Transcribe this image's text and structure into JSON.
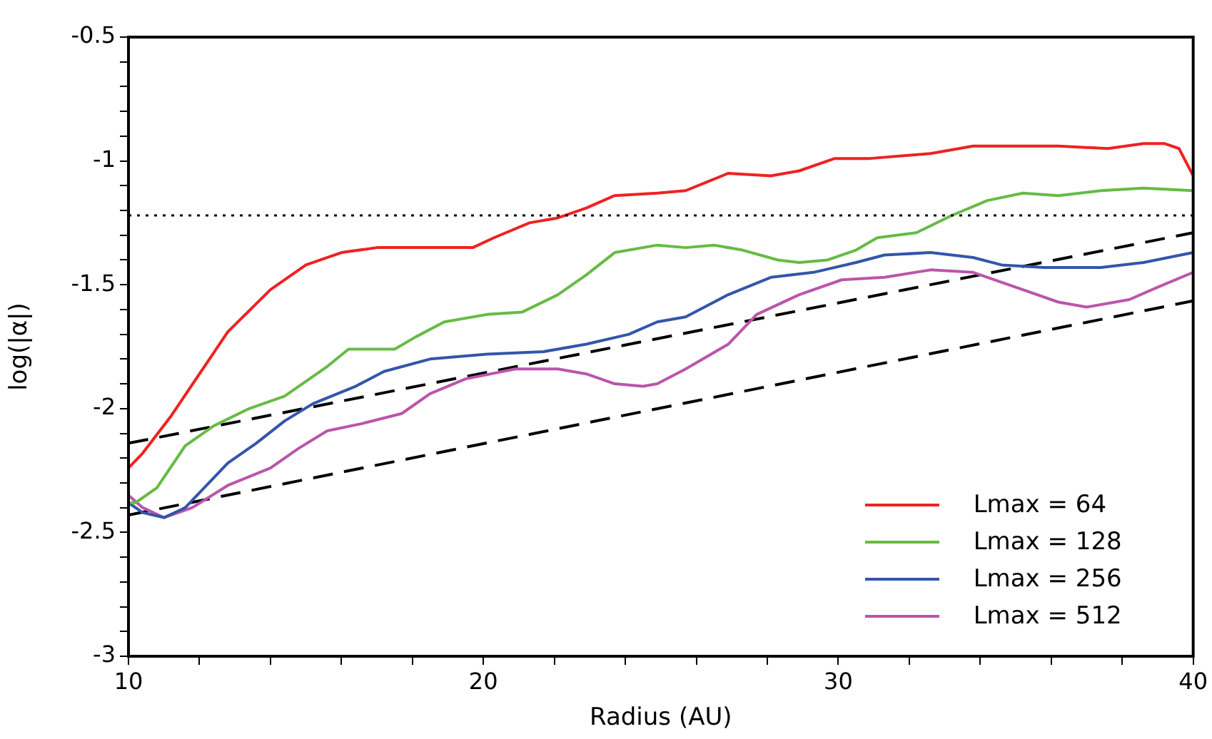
{
  "chart_data": {
    "type": "line",
    "xlabel": "Radius (AU)",
    "ylabel": "log(|α|)",
    "xlim": [
      10,
      40
    ],
    "xticks": [
      10,
      {
        "value": 12,
        "label": null
      },
      {
        "value": 14,
        "label": null
      },
      {
        "value": 16,
        "label": null
      },
      {
        "value": 18,
        "label": null
      },
      20,
      {
        "value": 22,
        "label": null
      },
      {
        "value": 24,
        "label": null
      },
      {
        "value": 26,
        "label": null
      },
      {
        "value": 28,
        "label": null
      },
      30,
      {
        "value": 32,
        "label": null
      },
      {
        "value": 34,
        "label": null
      },
      {
        "value": 36,
        "label": null
      },
      {
        "value": 38,
        "label": null
      },
      40
    ],
    "ylim": [
      -3,
      -0.5
    ],
    "yticks": [
      -3,
      {
        "value": -2.9,
        "label": null
      },
      {
        "value": -2.8,
        "label": null
      },
      {
        "value": -2.7,
        "label": null
      },
      {
        "value": -2.6,
        "label": null
      },
      -2.5,
      {
        "value": -2.4,
        "label": null
      },
      {
        "value": -2.3,
        "label": null
      },
      {
        "value": -2.2,
        "label": null
      },
      {
        "value": -2.1,
        "label": null
      },
      -2,
      {
        "value": -1.9,
        "label": null
      },
      {
        "value": -1.8,
        "label": null
      },
      {
        "value": -1.7,
        "label": null
      },
      {
        "value": -1.6,
        "label": null
      },
      -1.5,
      {
        "value": -1.4,
        "label": null
      },
      {
        "value": -1.3,
        "label": null
      },
      {
        "value": -1.2,
        "label": null
      },
      {
        "value": -1.1,
        "label": null
      },
      -1,
      {
        "value": -0.9,
        "label": null
      },
      {
        "value": -0.8,
        "label": null
      },
      {
        "value": -0.7,
        "label": null
      },
      {
        "value": -0.6,
        "label": null
      },
      -0.5
    ],
    "grid": false,
    "legend": "bottom right",
    "marker": "none",
    "ref_lines": [
      {
        "axis": "y",
        "value": -1.22,
        "label": null,
        "color": "#000000",
        "line_style": "dotted"
      }
    ],
    "series": [
      {
        "name": "Lmax = 64",
        "color": "#ee2222",
        "x": [
          10,
          10.4,
          11.2,
          12.0,
          12.8,
          14.0,
          15.0,
          16.0,
          17.0,
          18.7,
          19.7,
          20.3,
          21.3,
          22.1,
          22.9,
          23.7,
          24.9,
          25.7,
          26.9,
          28.1,
          28.9,
          29.9,
          30.9,
          32.6,
          33.8,
          35.4,
          36.2,
          37.6,
          38.6,
          39.2,
          39.6,
          40
        ],
        "values": [
          -2.24,
          -2.18,
          -2.03,
          -1.86,
          -1.69,
          -1.52,
          -1.42,
          -1.37,
          -1.35,
          -1.35,
          -1.35,
          -1.31,
          -1.25,
          -1.23,
          -1.19,
          -1.14,
          -1.13,
          -1.12,
          -1.05,
          -1.06,
          -1.04,
          -0.99,
          -0.99,
          -0.97,
          -0.94,
          -0.94,
          -0.94,
          -0.95,
          -0.93,
          -0.93,
          -0.95,
          -1.06
        ]
      },
      {
        "name": "Lmax = 128",
        "color": "#66bb44",
        "x": [
          10,
          10.2,
          10.8,
          11.6,
          12.4,
          13.4,
          14.4,
          15.0,
          15.6,
          16.2,
          17.5,
          18.1,
          18.9,
          20.1,
          21.1,
          22.1,
          22.9,
          23.7,
          24.9,
          25.7,
          26.5,
          27.3,
          28.3,
          28.9,
          29.7,
          30.5,
          31.1,
          32.2,
          33.2,
          34.2,
          35.2,
          36.2,
          37.4,
          38.6,
          40
        ],
        "values": [
          -2.38,
          -2.38,
          -2.32,
          -2.15,
          -2.07,
          -2.0,
          -1.95,
          -1.89,
          -1.83,
          -1.76,
          -1.76,
          -1.71,
          -1.65,
          -1.62,
          -1.61,
          -1.54,
          -1.46,
          -1.37,
          -1.34,
          -1.35,
          -1.34,
          -1.36,
          -1.4,
          -1.41,
          -1.4,
          -1.36,
          -1.31,
          -1.29,
          -1.22,
          -1.16,
          -1.13,
          -1.14,
          -1.12,
          -1.11,
          -1.12
        ]
      },
      {
        "name": "Lmax = 256",
        "color": "#3355aa",
        "x": [
          10,
          10.4,
          11.0,
          11.6,
          12.2,
          12.8,
          13.6,
          14.4,
          15.2,
          16.4,
          17.2,
          18.5,
          20.1,
          21.7,
          22.9,
          24.1,
          24.9,
          25.7,
          26.9,
          28.1,
          29.3,
          30.5,
          31.3,
          32.6,
          33.8,
          34.6,
          35.8,
          37.4,
          38.6,
          40
        ],
        "values": [
          -2.38,
          -2.42,
          -2.44,
          -2.4,
          -2.31,
          -2.22,
          -2.14,
          -2.05,
          -1.98,
          -1.91,
          -1.85,
          -1.8,
          -1.78,
          -1.77,
          -1.74,
          -1.7,
          -1.65,
          -1.63,
          -1.54,
          -1.47,
          -1.45,
          -1.41,
          -1.38,
          -1.37,
          -1.39,
          -1.42,
          -1.43,
          -1.43,
          -1.41,
          -1.37
        ]
      },
      {
        "name": "Lmax = 512",
        "color": "#bb55aa",
        "x": [
          10,
          10.4,
          11.0,
          11.8,
          12.8,
          14.0,
          14.8,
          15.6,
          16.6,
          17.7,
          18.5,
          19.5,
          20.9,
          22.1,
          22.9,
          23.7,
          24.5,
          24.9,
          25.7,
          26.9,
          27.7,
          28.9,
          30.1,
          31.3,
          32.6,
          33.8,
          35.0,
          36.2,
          37.0,
          38.2,
          39.0,
          40
        ],
        "values": [
          -2.35,
          -2.4,
          -2.44,
          -2.4,
          -2.31,
          -2.24,
          -2.16,
          -2.09,
          -2.06,
          -2.02,
          -1.94,
          -1.88,
          -1.84,
          -1.84,
          -1.86,
          -1.9,
          -1.91,
          -1.9,
          -1.84,
          -1.74,
          -1.62,
          -1.54,
          -1.48,
          -1.47,
          -1.44,
          -1.45,
          -1.51,
          -1.57,
          -1.59,
          -1.56,
          -1.51,
          -1.45
        ]
      },
      {
        "color": "#000000",
        "line_style": "dashed",
        "x": [
          10,
          40
        ],
        "values": [
          -2.14,
          -1.29
        ]
      },
      {
        "color": "#000000",
        "line_style": "dashed",
        "x": [
          10,
          40
        ],
        "values": [
          -2.43,
          -1.565
        ]
      }
    ]
  }
}
